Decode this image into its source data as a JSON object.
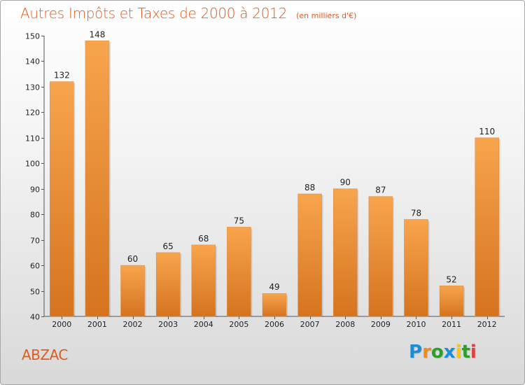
{
  "title": "Autres Impôts et Taxes de 2000 à 2012",
  "unit_note": "(en milliers d'€)",
  "commune": "ABZAC",
  "logo": {
    "letters": [
      "P",
      "r",
      "o",
      "x",
      "i",
      "t",
      "i"
    ],
    "colors": [
      "#1a8fd6",
      "#f08a1e",
      "#2aa02a",
      "#1a8fd6",
      "#f5c518",
      "#2aa02a",
      "#e04040"
    ]
  },
  "colors": {
    "bar_top": "#f7a54d",
    "bar_bottom": "#d6731f",
    "title": "#e05a1c"
  },
  "chart_data": {
    "type": "bar",
    "title": "Autres Impôts et Taxes de 2000 à 2012",
    "xlabel": "",
    "ylabel": "",
    "categories": [
      "2000",
      "2001",
      "2002",
      "2003",
      "2004",
      "2005",
      "2006",
      "2007",
      "2008",
      "2009",
      "2010",
      "2011",
      "2012"
    ],
    "values": [
      132,
      148,
      60,
      65,
      68,
      75,
      49,
      88,
      90,
      87,
      78,
      52,
      110
    ],
    "ylim": [
      40,
      150
    ],
    "yticks": [
      40,
      50,
      60,
      70,
      80,
      90,
      100,
      110,
      120,
      130,
      140,
      150
    ],
    "grid": false
  }
}
